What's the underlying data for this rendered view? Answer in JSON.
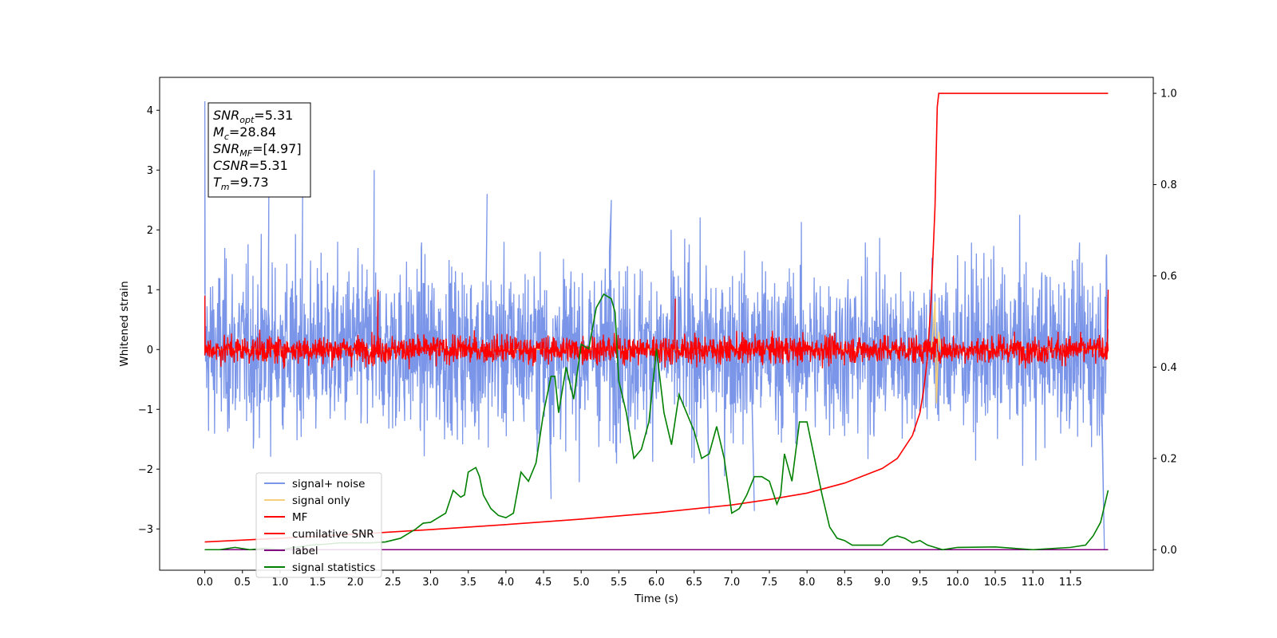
{
  "chart_data": {
    "type": "line",
    "title": "",
    "xlabel": "Time (s)",
    "ylabel": "Whitened strain",
    "y2label": "",
    "xlim": [
      -0.6,
      12.6
    ],
    "ylim": [
      -3.69,
      4.55
    ],
    "y2lim": [
      -0.045,
      1.035
    ],
    "x_ticks": [
      "0.0",
      "0.5",
      "1.0",
      "1.5",
      "2.0",
      "2.5",
      "3.0",
      "3.5",
      "4.0",
      "4.5",
      "5.0",
      "5.5",
      "6.0",
      "6.5",
      "7.0",
      "7.5",
      "8.0",
      "8.5",
      "9.0",
      "9.5",
      "10.0",
      "10.5",
      "11.0",
      "11.5"
    ],
    "y_ticks": [
      "4",
      "3",
      "2",
      "1",
      "0",
      "−1",
      "−2",
      "−3"
    ],
    "y2_ticks": [
      "1.0",
      "0.8",
      "0.6",
      "0.4",
      "0.2",
      "0.0"
    ],
    "grid": false,
    "legend": {
      "location": "lower-left",
      "entries": [
        {
          "label": "signal+ noise",
          "color": "#7b96e8"
        },
        {
          "label": "signal only",
          "color": "#f6cf7a"
        },
        {
          "label": "MF",
          "color": "#ff0000"
        },
        {
          "label": "cumilative SNR",
          "color": "#ff0000"
        },
        {
          "label": "label",
          "color": "#800080"
        },
        {
          "label": "signal statistics",
          "color": "#008000"
        }
      ]
    },
    "annotation": {
      "lines": [
        {
          "base": "SNR",
          "sub": "opt",
          "rest": "=5.31"
        },
        {
          "base": "M",
          "sub": "c",
          "rest": "=28.84"
        },
        {
          "base": "SNR",
          "sub": "MF",
          "rest": "=[4.97]"
        },
        {
          "base": "CSNR",
          "sub": "",
          "rest": "=5.31"
        },
        {
          "base": "T",
          "sub": "m",
          "rest": "=9.73"
        }
      ]
    },
    "series": [
      {
        "name": "signal+ noise",
        "axis": "left",
        "kind": "noise",
        "color": "#7b96e8",
        "t_range": [
          0,
          12.0
        ],
        "typical_range": [
          -1.8,
          1.8
        ],
        "spikes": [
          [
            0.0,
            4.15
          ],
          [
            0.0,
            3.2
          ],
          [
            2.25,
            3.0
          ],
          [
            0.85,
            2.6
          ],
          [
            1.3,
            2.7
          ],
          [
            3.75,
            2.6
          ],
          [
            5.4,
            2.5
          ],
          [
            4.6,
            -2.5
          ],
          [
            6.7,
            -2.75
          ],
          [
            7.3,
            -2.7
          ],
          [
            11.95,
            -3.35
          ]
        ]
      },
      {
        "name": "signal only",
        "axis": "left",
        "color": "#f6cf7a",
        "x": [
          0,
          9.5,
          9.6,
          9.65,
          9.7,
          9.72,
          9.75,
          9.78,
          12.0
        ],
        "y": [
          0,
          0,
          0.05,
          -0.1,
          0.8,
          -0.9,
          0.3,
          0,
          0
        ]
      },
      {
        "name": "MF",
        "axis": "left",
        "kind": "noise",
        "color": "#ff0000",
        "t_range": [
          0,
          12.0
        ],
        "typical_range": [
          -0.3,
          0.3
        ],
        "spikes": [
          [
            0.0,
            0.9
          ],
          [
            2.3,
            1.0
          ],
          [
            6.25,
            0.85
          ],
          [
            12.0,
            1.0
          ],
          [
            0.0,
            -0.1
          ]
        ]
      },
      {
        "name": "cumilative SNR",
        "axis": "right",
        "color": "#ff0000",
        "x": [
          0,
          1,
          2,
          3,
          4,
          5,
          6,
          7,
          7.5,
          8,
          8.5,
          9,
          9.2,
          9.4,
          9.5,
          9.55,
          9.6,
          9.65,
          9.7,
          9.73,
          9.75,
          10,
          11,
          12.0
        ],
        "y": [
          0.017,
          0.025,
          0.034,
          0.044,
          0.055,
          0.067,
          0.081,
          0.098,
          0.11,
          0.124,
          0.146,
          0.178,
          0.2,
          0.25,
          0.3,
          0.35,
          0.42,
          0.55,
          0.75,
          0.97,
          1.0,
          1.0,
          1.0,
          1.0
        ]
      },
      {
        "name": "label",
        "axis": "right",
        "color": "#800080",
        "x": [
          0,
          12.0
        ],
        "y": [
          0.0,
          0.0
        ]
      },
      {
        "name": "signal statistics",
        "axis": "right",
        "color": "#008000",
        "x": [
          0,
          0.2,
          0.4,
          0.6,
          0.8,
          1.0,
          1.2,
          1.4,
          1.6,
          1.8,
          2.0,
          2.2,
          2.4,
          2.6,
          2.8,
          2.9,
          3.0,
          3.1,
          3.2,
          3.3,
          3.4,
          3.45,
          3.5,
          3.6,
          3.65,
          3.7,
          3.8,
          3.9,
          4.0,
          4.1,
          4.2,
          4.3,
          4.4,
          4.5,
          4.6,
          4.65,
          4.7,
          4.8,
          4.9,
          5.0,
          5.1,
          5.2,
          5.3,
          5.4,
          5.45,
          5.5,
          5.6,
          5.7,
          5.8,
          5.9,
          6.0,
          6.1,
          6.2,
          6.3,
          6.4,
          6.5,
          6.6,
          6.7,
          6.8,
          6.9,
          7.0,
          7.1,
          7.2,
          7.3,
          7.4,
          7.5,
          7.6,
          7.65,
          7.7,
          7.8,
          7.9,
          8.0,
          8.1,
          8.2,
          8.3,
          8.4,
          8.5,
          8.6,
          8.8,
          9.0,
          9.1,
          9.2,
          9.3,
          9.4,
          9.5,
          9.6,
          9.7,
          9.8,
          10.0,
          10.5,
          11.0,
          11.5,
          11.7,
          11.8,
          11.9,
          12.0
        ],
        "y": [
          0.0,
          0.0,
          0.005,
          0.0,
          0.003,
          0.0,
          0.005,
          0.01,
          0.012,
          0.015,
          0.015,
          0.015,
          0.017,
          0.025,
          0.045,
          0.058,
          0.06,
          0.07,
          0.08,
          0.13,
          0.115,
          0.12,
          0.17,
          0.18,
          0.16,
          0.12,
          0.09,
          0.075,
          0.07,
          0.08,
          0.17,
          0.15,
          0.19,
          0.3,
          0.38,
          0.38,
          0.3,
          0.4,
          0.33,
          0.45,
          0.44,
          0.53,
          0.56,
          0.55,
          0.52,
          0.37,
          0.3,
          0.2,
          0.22,
          0.28,
          0.44,
          0.3,
          0.23,
          0.34,
          0.3,
          0.26,
          0.2,
          0.21,
          0.27,
          0.2,
          0.08,
          0.09,
          0.12,
          0.16,
          0.16,
          0.15,
          0.1,
          0.12,
          0.21,
          0.15,
          0.28,
          0.28,
          0.2,
          0.12,
          0.05,
          0.025,
          0.02,
          0.01,
          0.01,
          0.01,
          0.025,
          0.03,
          0.025,
          0.015,
          0.02,
          0.01,
          0.005,
          0.0,
          0.005,
          0.006,
          0.0,
          0.005,
          0.01,
          0.03,
          0.06,
          0.13
        ]
      }
    ]
  }
}
